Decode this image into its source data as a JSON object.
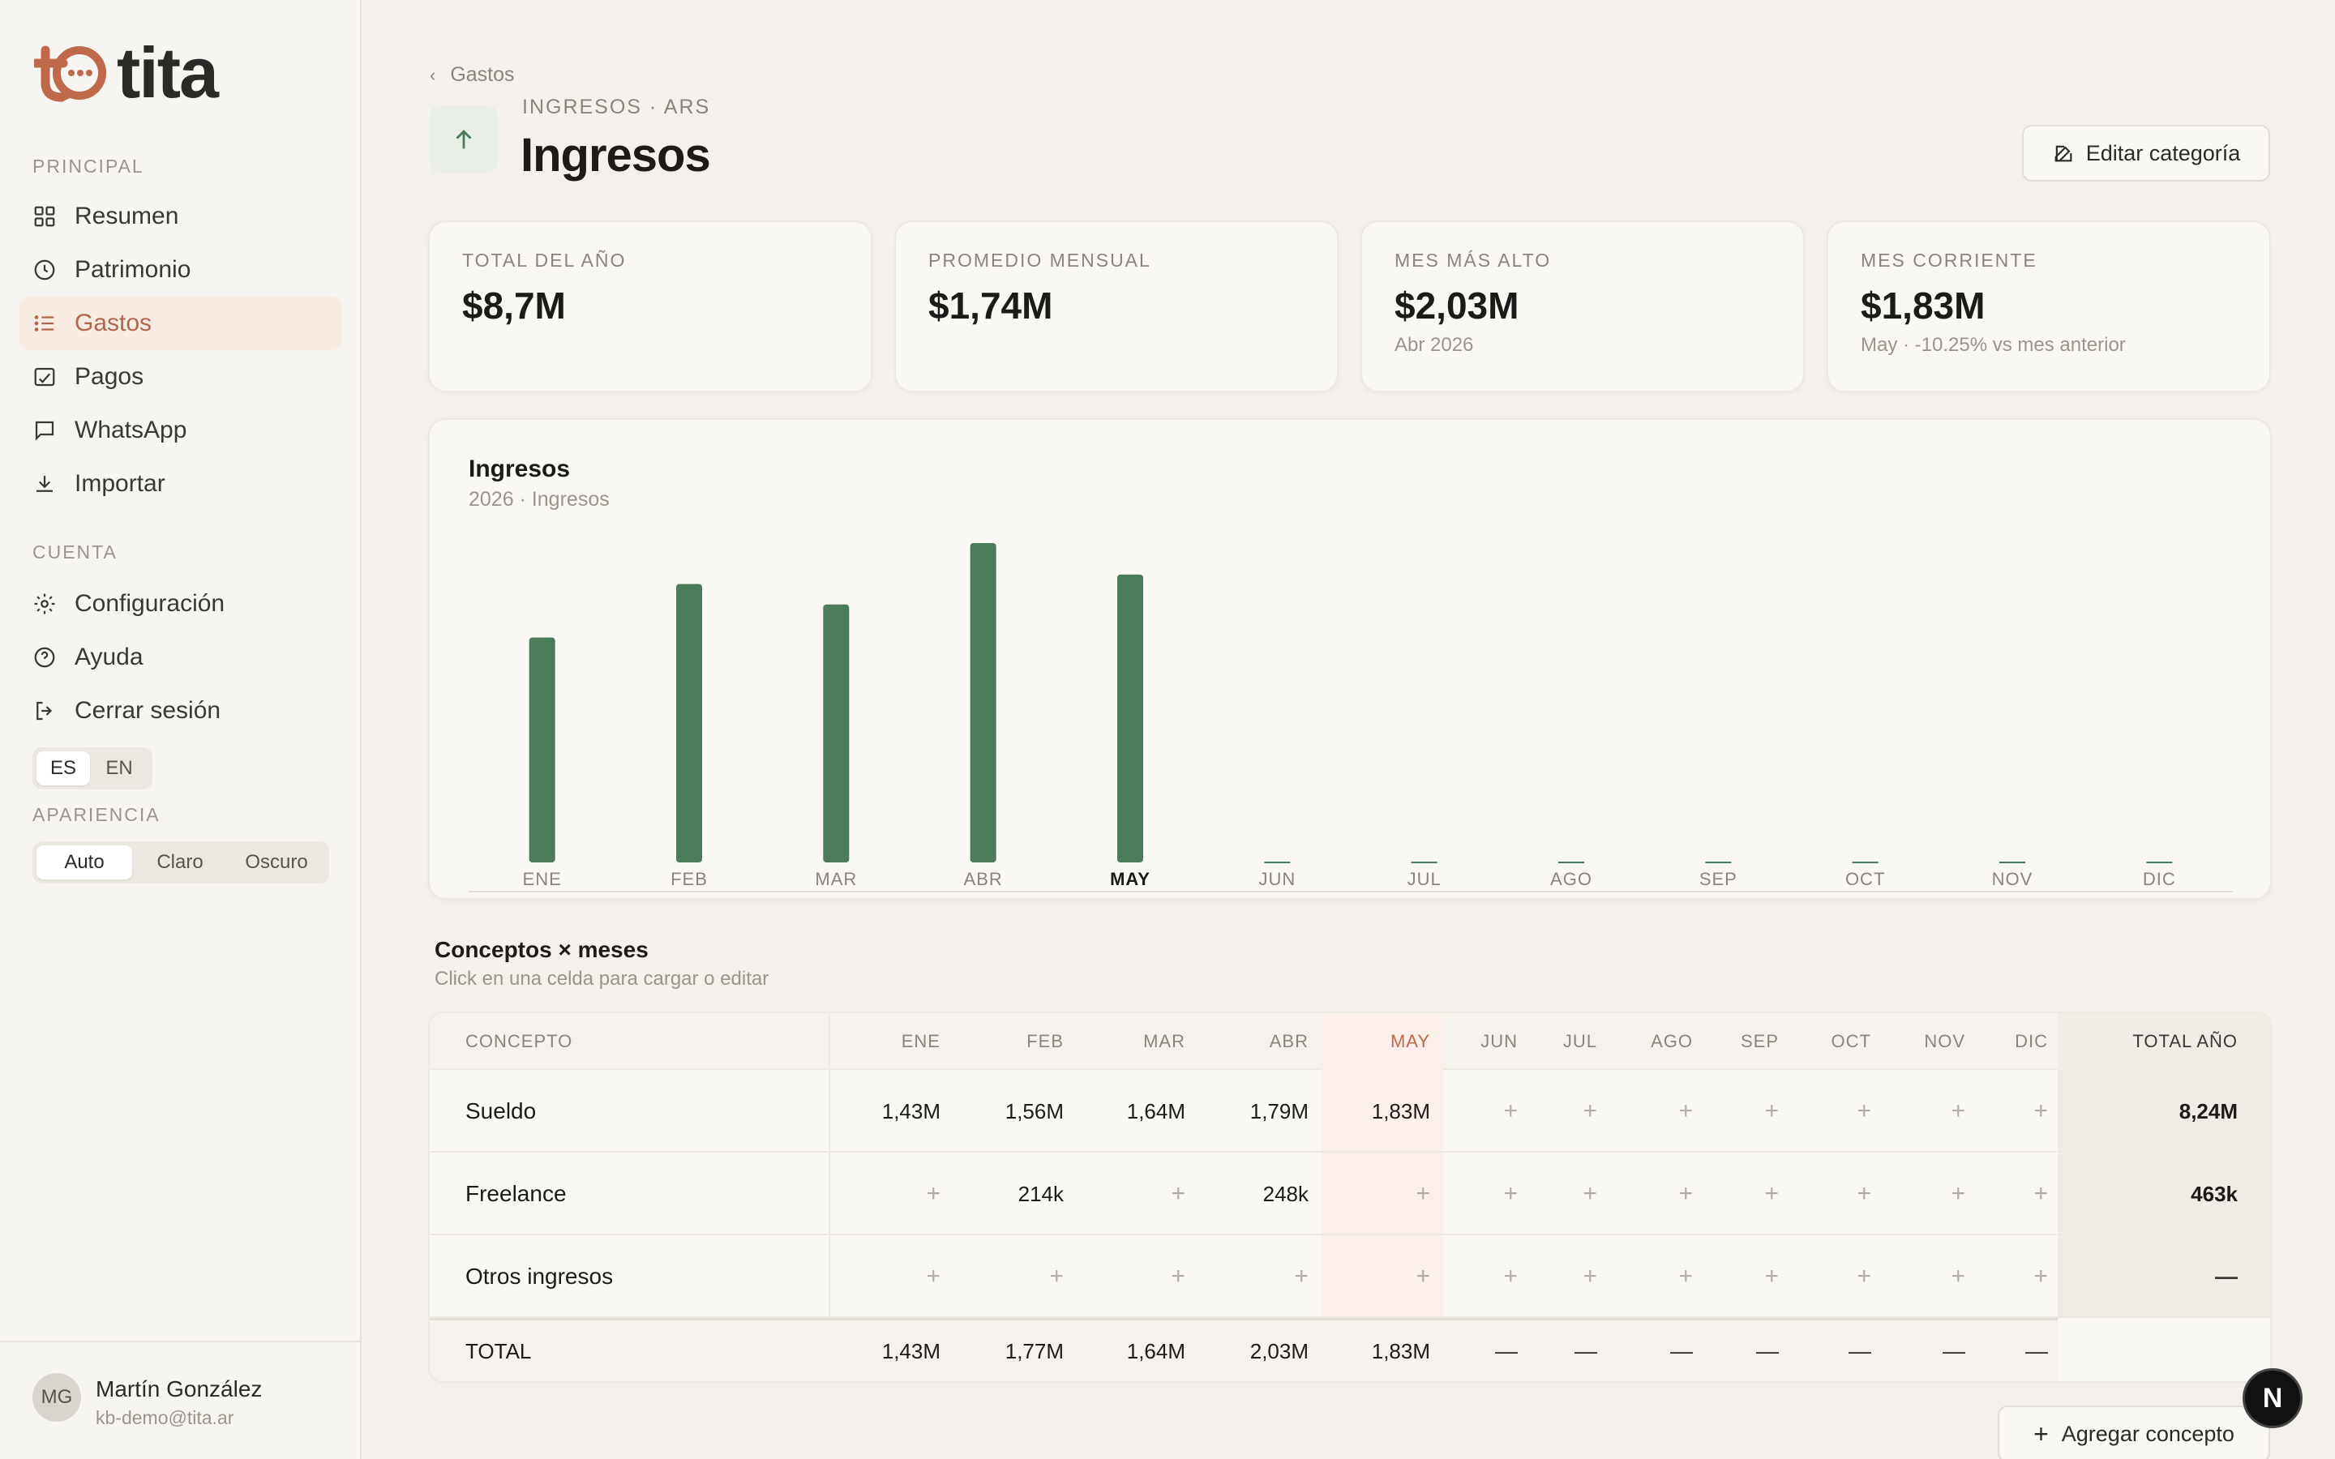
{
  "brand": {
    "name": "tita",
    "accent": "#c0694a"
  },
  "sidebar": {
    "principal_label": "PRINCIPAL",
    "principal_items": [
      {
        "label": "Resumen",
        "icon": "grid-icon"
      },
      {
        "label": "Patrimonio",
        "icon": "clock-icon"
      },
      {
        "label": "Gastos",
        "icon": "list-icon",
        "active": true
      },
      {
        "label": "Pagos",
        "icon": "receipt-icon"
      },
      {
        "label": "WhatsApp",
        "icon": "chat-icon"
      },
      {
        "label": "Importar",
        "icon": "download-icon"
      }
    ],
    "account_label": "CUENTA",
    "account_items": [
      {
        "label": "Configuración",
        "icon": "gear-icon"
      },
      {
        "label": "Ayuda",
        "icon": "help-icon"
      },
      {
        "label": "Cerrar sesión",
        "icon": "logout-icon"
      }
    ],
    "languages": [
      "ES",
      "EN"
    ],
    "language_selected": "ES",
    "appearance_label": "APARIENCIA",
    "appearance_options": [
      "Auto",
      "Claro",
      "Oscuro"
    ],
    "appearance_selected": "Auto",
    "user": {
      "initials": "MG",
      "name": "Martín González",
      "email": "kb-demo@tita.ar"
    }
  },
  "header": {
    "back_label": "Gastos",
    "crumb": "INGRESOS · ARS",
    "title": "Ingresos",
    "edit_label": "Editar categoría"
  },
  "stats": [
    {
      "label": "TOTAL DEL AÑO",
      "value": "$8,7M",
      "sub": ""
    },
    {
      "label": "PROMEDIO MENSUAL",
      "value": "$1,74M",
      "sub": ""
    },
    {
      "label": "MES MÁS ALTO",
      "value": "$2,03M",
      "sub": "Abr 2026"
    },
    {
      "label": "MES CORRIENTE",
      "value": "$1,83M",
      "sub": "May · -10.25% vs mes anterior"
    }
  ],
  "chart": {
    "title": "Ingresos",
    "subtitle": "2026 · Ingresos",
    "bar_color": "#4a7c59"
  },
  "chart_data": {
    "type": "bar",
    "categories": [
      "ENE",
      "FEB",
      "MAR",
      "ABR",
      "MAY",
      "JUN",
      "JUL",
      "AGO",
      "SEP",
      "OCT",
      "NOV",
      "DIC"
    ],
    "values": [
      1.43,
      1.77,
      1.64,
      2.03,
      1.83,
      0,
      0,
      0,
      0,
      0,
      0,
      0
    ],
    "highlight_category": "MAY",
    "ylim": [
      0,
      2.03
    ],
    "title": "Ingresos",
    "subtitle": "2026 · Ingresos"
  },
  "table": {
    "title": "Conceptos × meses",
    "subtitle": "Click en una celda para cargar o editar",
    "concept_header": "CONCEPTO",
    "months": [
      "ENE",
      "FEB",
      "MAR",
      "ABR",
      "MAY",
      "JUN",
      "JUL",
      "AGO",
      "SEP",
      "OCT",
      "NOV",
      "DIC"
    ],
    "total_header": "TOTAL AÑO",
    "highlight_month": "MAY",
    "rows": [
      {
        "label": "Sueldo",
        "cells": [
          "1,43M",
          "1,56M",
          "1,64M",
          "1,79M",
          "1,83M",
          "+",
          "+",
          "+",
          "+",
          "+",
          "+",
          "+"
        ],
        "total": "8,24M"
      },
      {
        "label": "Freelance",
        "cells": [
          "+",
          "214k",
          "+",
          "248k",
          "+",
          "+",
          "+",
          "+",
          "+",
          "+",
          "+",
          "+"
        ],
        "total": "463k"
      },
      {
        "label": "Otros ingresos",
        "cells": [
          "+",
          "+",
          "+",
          "+",
          "+",
          "+",
          "+",
          "+",
          "+",
          "+",
          "+",
          "+"
        ],
        "total": "—"
      }
    ],
    "footer": {
      "label": "TOTAL",
      "cells": [
        "1,43M",
        "1,77M",
        "1,64M",
        "2,03M",
        "1,83M",
        "—",
        "—",
        "—",
        "—",
        "—",
        "—",
        "—"
      ],
      "total": ""
    },
    "add_label": "Agregar concepto"
  },
  "fab_label": "N"
}
